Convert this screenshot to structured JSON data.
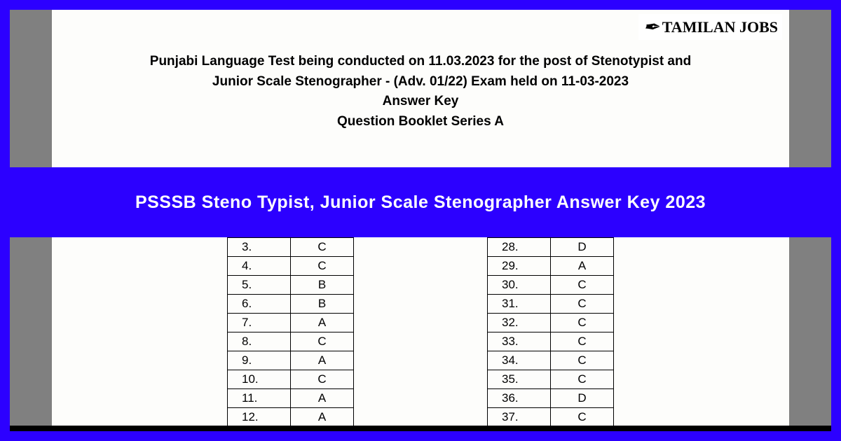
{
  "logo": {
    "icon_glyph": "✒",
    "text": "TAMILAN JOBS"
  },
  "header": {
    "line1": "Punjabi Language Test being conducted on 11.03.2023 for the post of Stenotypist and",
    "line2": "Junior Scale Stenographer - (Adv. 01/22) Exam held on 11-03-2023",
    "line3": "Answer Key",
    "line4": "Question Booklet Series A"
  },
  "banner": {
    "text": "PSSSB Steno Typist, Junior Scale Stenographer Answer Key 2023"
  },
  "colors": {
    "frame_blue": "#2c00ff",
    "banner_blue": "#2c00ff",
    "gray_bars": "#808080",
    "page_bg": "#fdfdfb",
    "text": "#000000",
    "banner_text": "#ffffff"
  },
  "table_left": {
    "rows": [
      {
        "q": "3.",
        "a": "C"
      },
      {
        "q": "4.",
        "a": "C"
      },
      {
        "q": "5.",
        "a": "B"
      },
      {
        "q": "6.",
        "a": "B"
      },
      {
        "q": "7.",
        "a": "A"
      },
      {
        "q": "8.",
        "a": "C"
      },
      {
        "q": "9.",
        "a": "A"
      },
      {
        "q": "10.",
        "a": "C"
      },
      {
        "q": "11.",
        "a": "A"
      },
      {
        "q": "12.",
        "a": "A"
      }
    ]
  },
  "table_right": {
    "rows": [
      {
        "q": "28.",
        "a": "D"
      },
      {
        "q": "29.",
        "a": "A"
      },
      {
        "q": "30.",
        "a": "C"
      },
      {
        "q": "31.",
        "a": "C"
      },
      {
        "q": "32.",
        "a": "C"
      },
      {
        "q": "33.",
        "a": "C"
      },
      {
        "q": "34.",
        "a": "C"
      },
      {
        "q": "35.",
        "a": "C"
      },
      {
        "q": "36.",
        "a": "D"
      },
      {
        "q": "37.",
        "a": "C"
      }
    ]
  }
}
